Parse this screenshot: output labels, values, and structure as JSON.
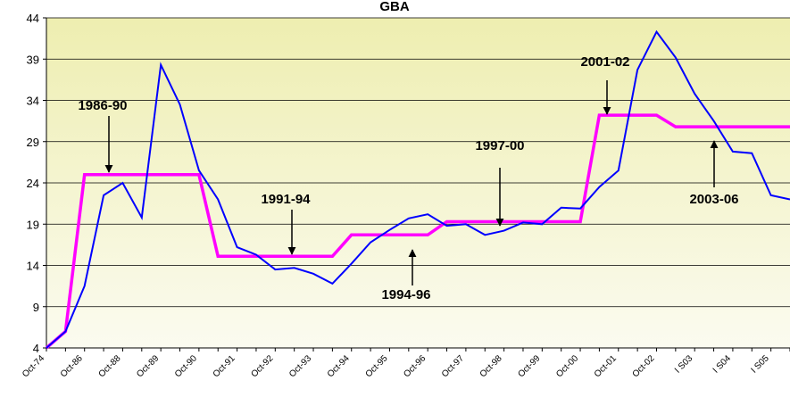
{
  "chart_data": {
    "type": "line",
    "title": "GBA",
    "categories": [
      "Oct-74",
      null,
      "Oct-86",
      null,
      "Oct-88",
      null,
      "Oct-89",
      null,
      "Oct-90",
      null,
      "Oct-91",
      null,
      "Oct-92",
      null,
      "Oct-93",
      null,
      "Oct-94",
      null,
      "Oct-95",
      null,
      "Oct-96",
      null,
      "Oct-97",
      null,
      "Oct-98",
      null,
      "Oct-99",
      null,
      "Oct-00",
      null,
      "Oct-01",
      null,
      "Oct-02",
      null,
      "I S03",
      null,
      "I S04",
      null,
      "I S05",
      null
    ],
    "series": [
      {
        "color": "#0000ff",
        "values": [
          4,
          6,
          11.5,
          22.5,
          24,
          19.8,
          38.3,
          33.5,
          25.5,
          22,
          16.2,
          15.3,
          13.5,
          13.7,
          13,
          11.8,
          14.2,
          16.8,
          18.3,
          19.7,
          20.2,
          18.8,
          19,
          17.7,
          18.2,
          19.2,
          19,
          21,
          20.9,
          23.5,
          25.5,
          37.7,
          42.3,
          39.2,
          34.8,
          31.5,
          27.8,
          27.6,
          22.5,
          22
        ]
      },
      {
        "color": "#ff00ff",
        "values": [
          4,
          6,
          25,
          25,
          25,
          25,
          25,
          25,
          25,
          15.1,
          15.1,
          15.1,
          15.1,
          15.1,
          15.1,
          15.1,
          17.7,
          17.7,
          17.7,
          17.7,
          17.7,
          19.3,
          19.3,
          19.3,
          19.3,
          19.3,
          19.3,
          19.3,
          19.3,
          32.2,
          32.2,
          32.2,
          32.2,
          30.8,
          30.8,
          30.8,
          30.8,
          30.8,
          30.8,
          30.8
        ]
      }
    ],
    "annotations": [
      "1986-90",
      "1991-94",
      "1994-96",
      "1997-00",
      "2001-02",
      "2003-06"
    ],
    "ylim": [
      4,
      44
    ],
    "yticks": [
      4,
      9,
      14,
      19,
      24,
      29,
      34,
      39,
      44
    ],
    "grid": true
  }
}
